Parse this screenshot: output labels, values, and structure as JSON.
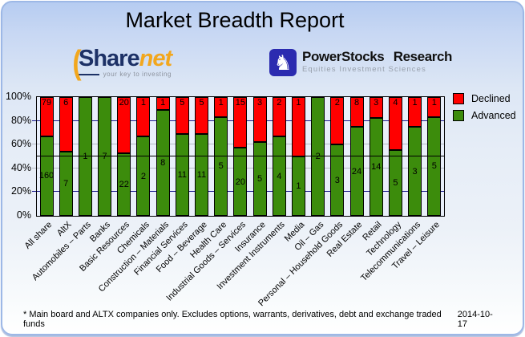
{
  "header": {
    "title": "Market Breadth Report"
  },
  "logos": {
    "sharenet": {
      "wordmark_left": "Share",
      "wordmark_right": "net",
      "tagline": "your key to investing",
      "arc_icon": "open-paren-swoosh",
      "brand_navy": "#1d3166",
      "brand_orange": "#f2a71e"
    },
    "powerstocks": {
      "name": "PowerStocks Research",
      "subtitle": "Equities Investment Sciences",
      "icon": "chess-knight",
      "icon_bg": "#2b2bb0"
    }
  },
  "chart_data": {
    "type": "bar",
    "stacked": true,
    "stack_mode": "percent_of_total",
    "categories": [
      "All share",
      "AltX",
      "Automobiles – Parts",
      "Banks",
      "Basic Resources",
      "Chemicals",
      "Construction – Materials",
      "Financial Services",
      "Food – Beverage",
      "Health Care",
      "Industrial Goods – Services",
      "Insurance",
      "Investment Instruments",
      "Media",
      "Oil – Gas",
      "Personal – Household Goods",
      "Real Estate",
      "Retail",
      "Technology",
      "Telecommunications",
      "Travel – Leisure"
    ],
    "series": [
      {
        "name": "Declined",
        "color": "#ff0000",
        "values": [
          79,
          6,
          0,
          0,
          20,
          1,
          1,
          5,
          5,
          1,
          15,
          3,
          2,
          1,
          0,
          2,
          8,
          3,
          4,
          1,
          1
        ]
      },
      {
        "name": "Advanced",
        "color": "#3c8c0c",
        "values": [
          160,
          7,
          1,
          7,
          22,
          2,
          8,
          11,
          11,
          5,
          20,
          5,
          4,
          1,
          2,
          3,
          24,
          14,
          5,
          3,
          5
        ]
      }
    ],
    "y_axis": {
      "ticks": [
        "0%",
        "20%",
        "40%",
        "60%",
        "80%",
        "100%"
      ],
      "min": 0,
      "max": 100
    },
    "reference_line_pct": 50,
    "gridlines": [
      {
        "pct": 20,
        "color": "#1d1d8f"
      },
      {
        "pct": 40,
        "color": "#b4bac4"
      },
      {
        "pct": 60,
        "color": "#b4bac4"
      },
      {
        "pct": 80,
        "color": "#1d1d8f"
      }
    ],
    "legend_position": "top-right",
    "grid": true
  },
  "footer": {
    "note": "* Main board and ALTX companies only. Excludes options, warrants, derivatives, debt and exchange traded funds",
    "date": "2014-10-17"
  }
}
